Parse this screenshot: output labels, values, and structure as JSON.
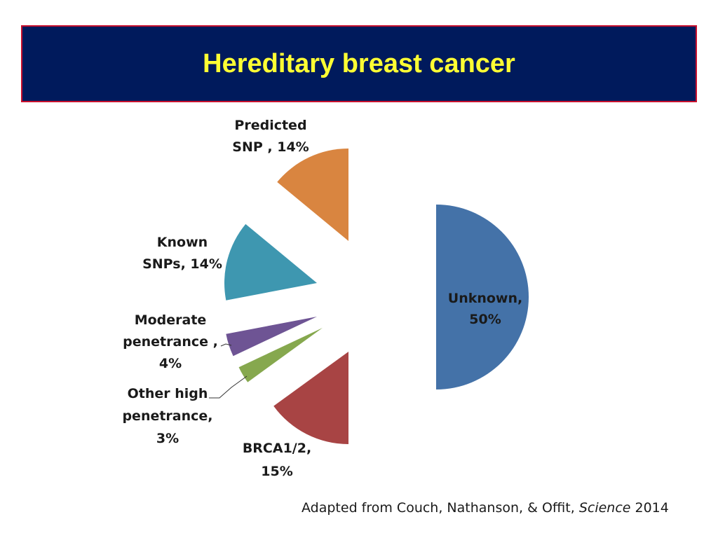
{
  "header": {
    "title": "Hereditary breast cancer"
  },
  "chart_data": {
    "type": "pie",
    "title": "",
    "exploded": true,
    "slices": [
      {
        "label_lines": [
          "Unknown,",
          "50%"
        ],
        "category": "Unknown",
        "value": 50,
        "color": "#4472a8"
      },
      {
        "label_lines": [
          "BRCA1/2,",
          "15%"
        ],
        "category": "BRCA1/2",
        "value": 15,
        "color": "#a84444"
      },
      {
        "label_lines": [
          "Other high",
          "penetrance,",
          "3%"
        ],
        "category": "Other high penetrance",
        "value": 3,
        "color": "#86a84e"
      },
      {
        "label_lines": [
          "Moderate",
          "penetrance ,",
          "4%"
        ],
        "category": "Moderate penetrance",
        "value": 4,
        "color": "#6e5494"
      },
      {
        "label_lines": [
          "Known",
          "SNPs, 14%"
        ],
        "category": "Known SNPs",
        "value": 14,
        "color": "#3e97b0"
      },
      {
        "label_lines": [
          "Predicted",
          "SNP , 14%"
        ],
        "category": "Predicted SNP",
        "value": 14,
        "color": "#d98540"
      }
    ]
  },
  "footer": {
    "citation_prefix": "Adapted from Couch, Nathanson, & Offit, ",
    "citation_journal": "Science",
    "citation_year": " 2014"
  }
}
